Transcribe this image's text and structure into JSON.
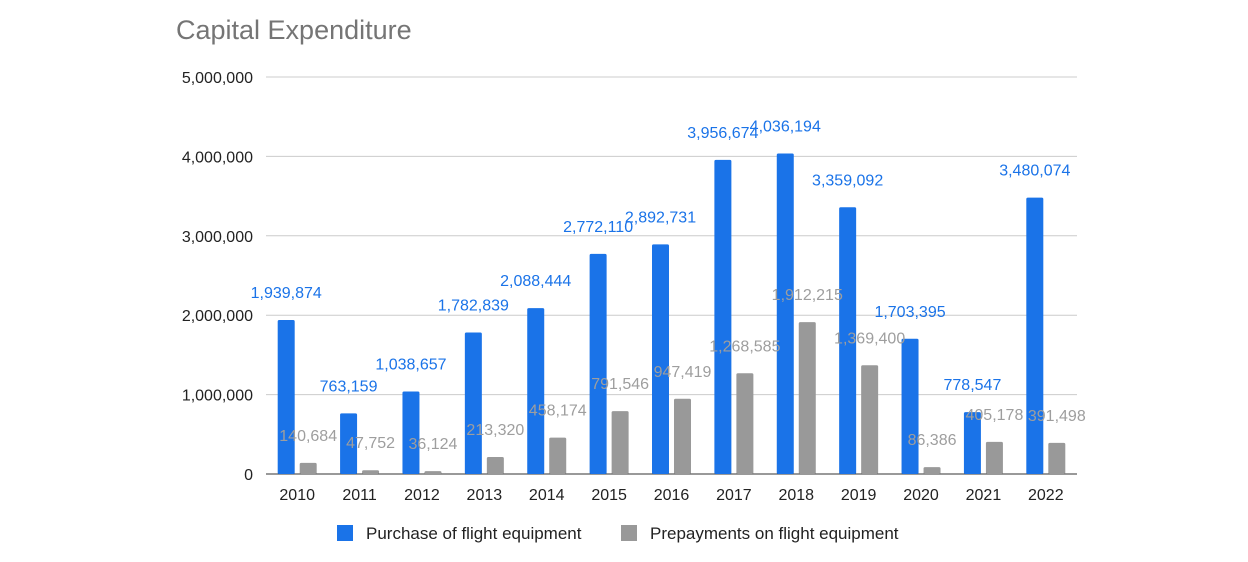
{
  "chart_data": {
    "type": "bar",
    "title": "Capital Expenditure",
    "xlabel": "",
    "ylabel": "",
    "ylim": [
      0,
      5000000
    ],
    "yticks": [
      "0",
      "1,000,000",
      "2,000,000",
      "3,000,000",
      "4,000,000",
      "5,000,000"
    ],
    "grid": true,
    "legend_position": "bottom",
    "categories": [
      "2010",
      "2011",
      "2012",
      "2013",
      "2014",
      "2015",
      "2016",
      "2017",
      "2018",
      "2019",
      "2020",
      "2021",
      "2022"
    ],
    "series": [
      {
        "name": "Purchase of flight equipment",
        "color": "#1a73e8",
        "values": [
          1939874,
          763159,
          1038657,
          1782839,
          2088444,
          2772110,
          2892731,
          3956674,
          4036194,
          3359092,
          1703395,
          778547,
          3480074
        ],
        "labels": [
          "1,939,874",
          "763,159",
          "1,038,657",
          "1,782,839",
          "2,088,444",
          "2,772,110",
          "2,892,731",
          "3,956,674",
          "4,036,194",
          "3,359,092",
          "1,703,395",
          "778,547",
          "3,480,074"
        ]
      },
      {
        "name": "Prepayments on flight equipment",
        "color": "#999999",
        "values": [
          140684,
          47752,
          36124,
          213320,
          458174,
          791546,
          947419,
          1268585,
          1912215,
          1369400,
          86386,
          405178,
          391498
        ],
        "labels": [
          "140,684",
          "47,752",
          "36,124",
          "213,320",
          "458,174",
          "791,546",
          "947,419",
          "1,268,585",
          "1,912,215",
          "1,369,400",
          "86,386",
          "405,178",
          "391,498"
        ]
      }
    ]
  }
}
